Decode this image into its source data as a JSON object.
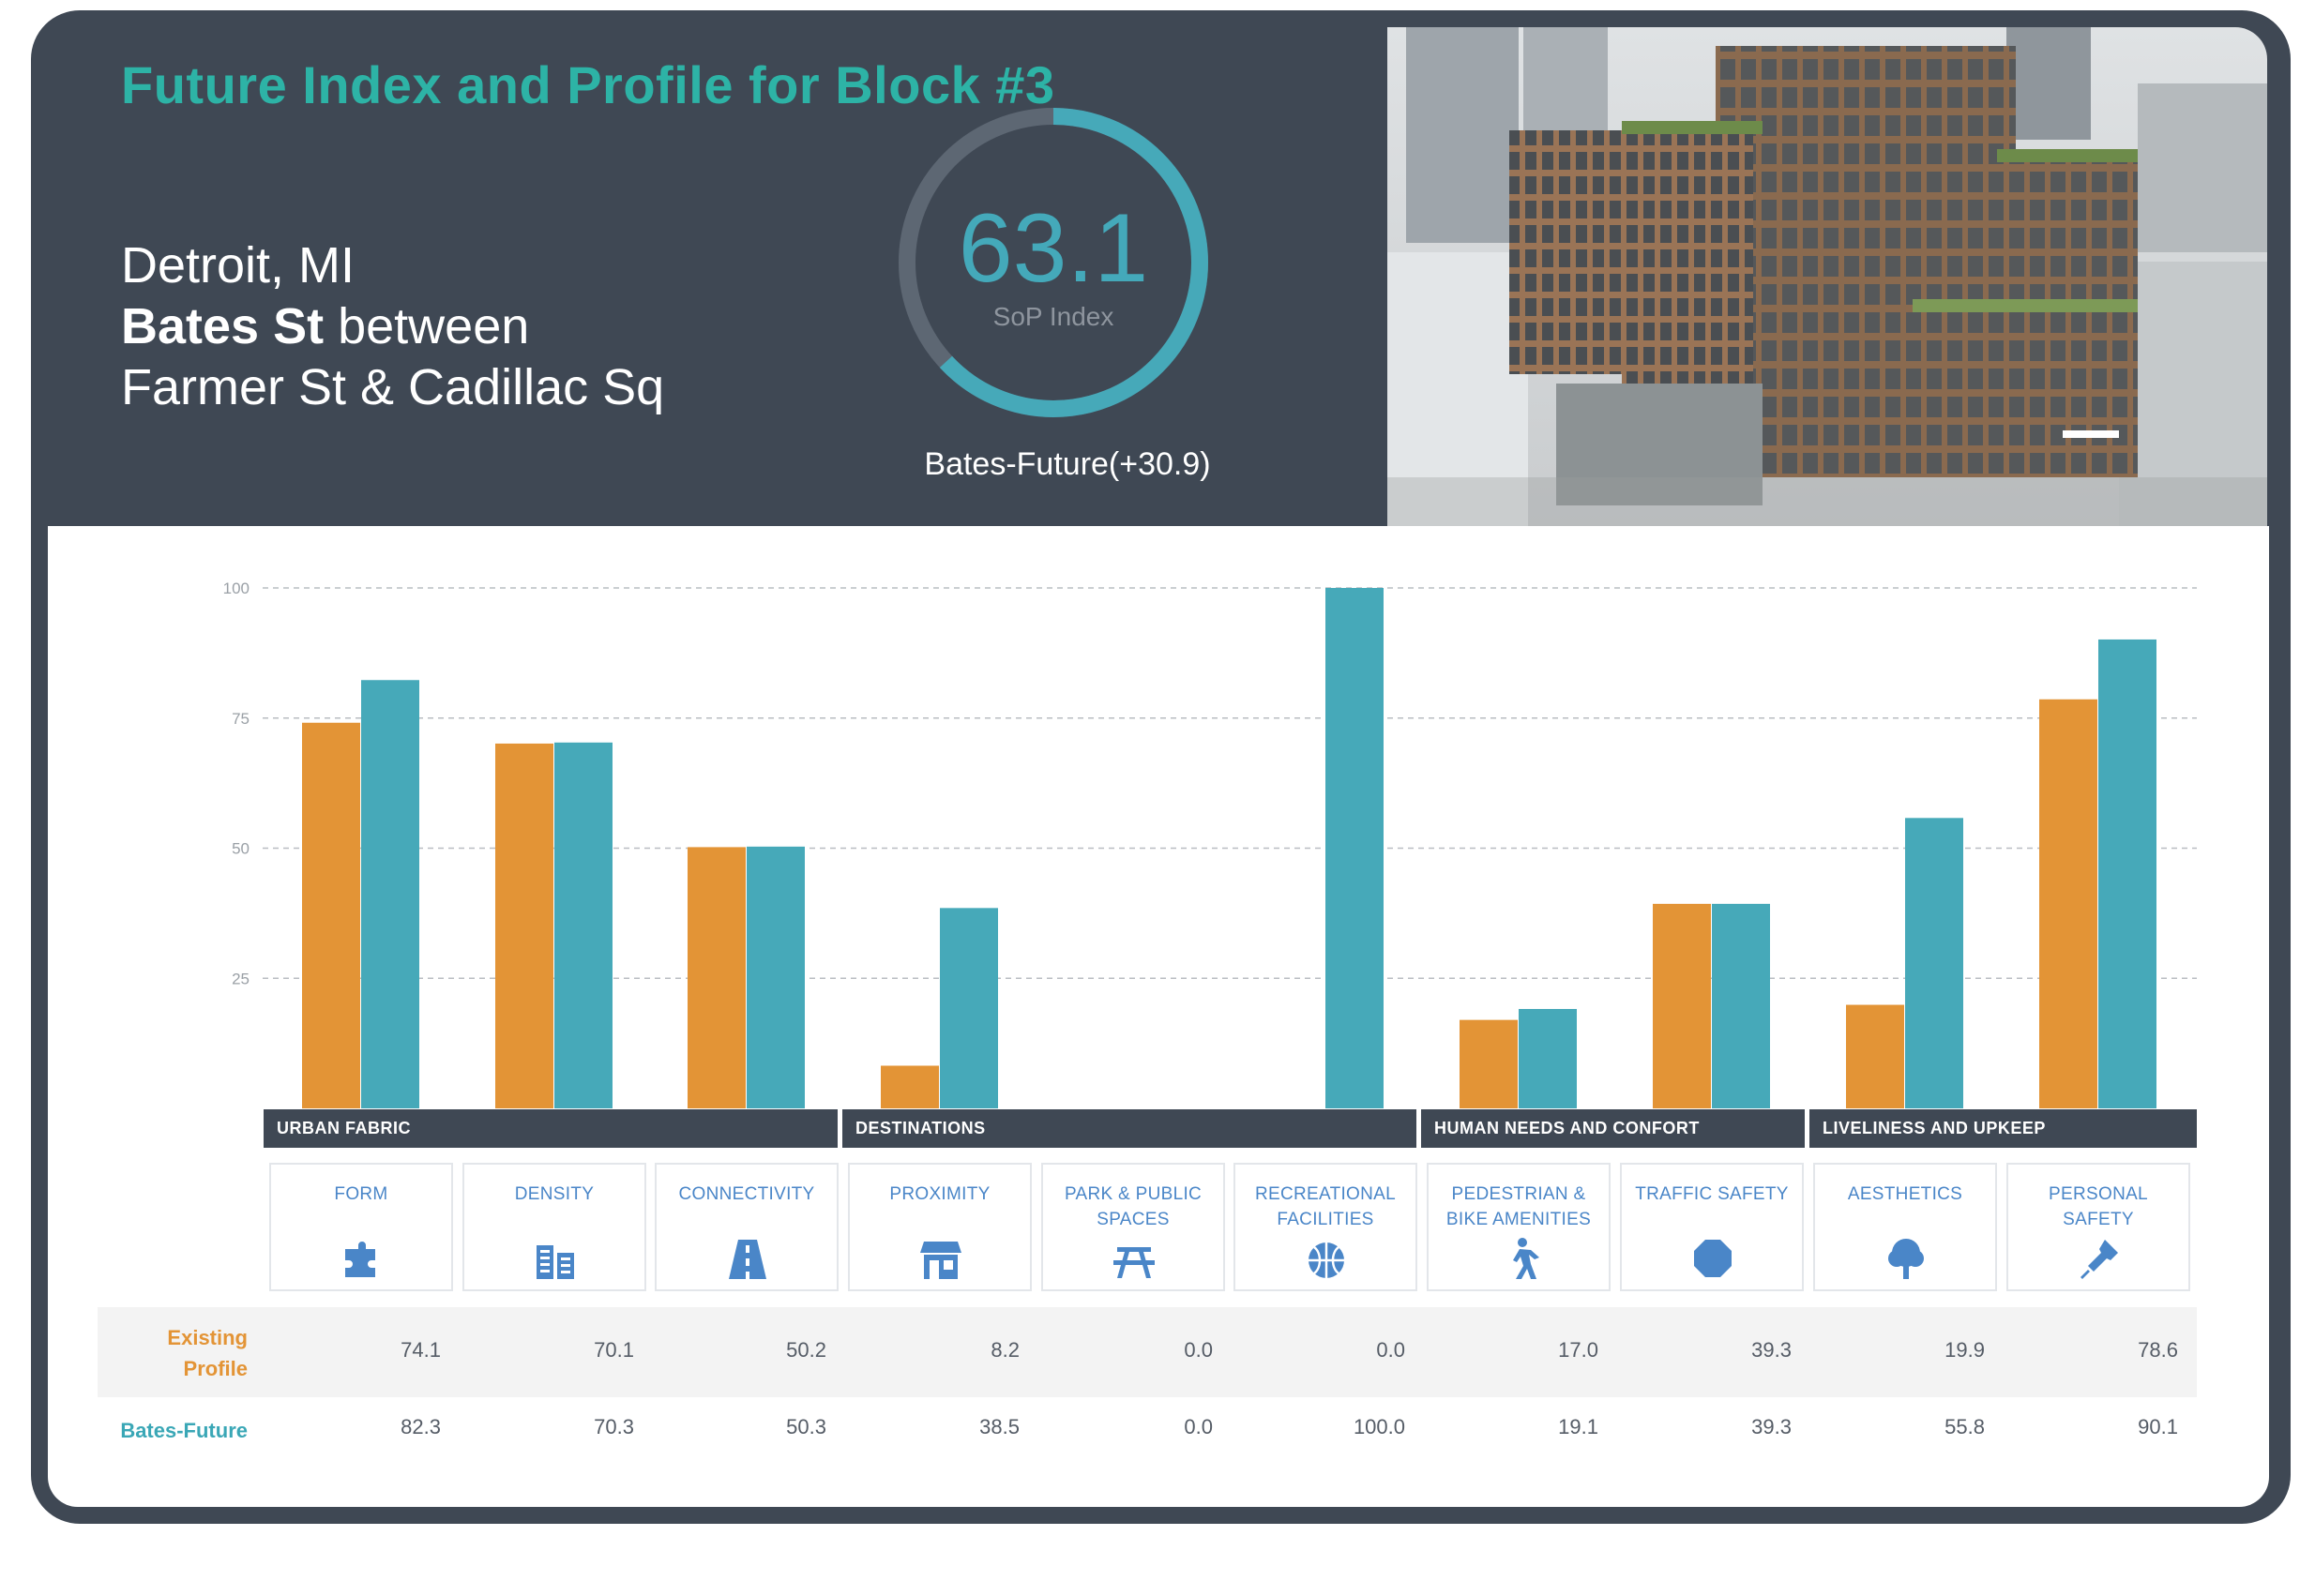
{
  "header": {
    "title": "Future Index and Profile for Block #3",
    "city": "Detroit, MI",
    "street": "Bates St",
    "between_text": "between",
    "cross_streets": "Farmer St & Cadillac Sq"
  },
  "gauge": {
    "value": "63.1",
    "label": "SoP Index",
    "fraction": 0.631,
    "caption": "Bates-Future(+30.9)"
  },
  "colors": {
    "existing": "#e39436",
    "future": "#46a9b9",
    "dark": "#3f4854",
    "accent_title": "#2db3a6",
    "category_text": "#4a86c8"
  },
  "groups": [
    {
      "label": "URBAN FABRIC"
    },
    {
      "label": "DESTINATIONS"
    },
    {
      "label": "HUMAN NEEDS AND CONFORT"
    },
    {
      "label": "LIVELINESS AND UPKEEP"
    }
  ],
  "categories": [
    {
      "label": "FORM",
      "icon": "puzzle-icon"
    },
    {
      "label": "DENSITY",
      "icon": "buildings-icon"
    },
    {
      "label": "CONNECTIVITY",
      "icon": "road-icon"
    },
    {
      "label": "PROXIMITY",
      "icon": "storefront-icon"
    },
    {
      "label": "PARK & PUBLIC SPACES",
      "icon": "picnic-table-icon"
    },
    {
      "label": "RECREATIONAL FACILITIES",
      "icon": "basketball-icon"
    },
    {
      "label": "PEDESTRIAN & BIKE AMENITIES",
      "icon": "walking-person-icon"
    },
    {
      "label": "TRAFFIC SAFETY",
      "icon": "stop-sign-icon"
    },
    {
      "label": "AESTHETICS",
      "icon": "tree-icon"
    },
    {
      "label": "PERSONAL SAFETY",
      "icon": "flashlight-icon"
    }
  ],
  "table": {
    "existing_label": "Existing Profile",
    "future_label": "Bates-Future",
    "existing_values": [
      "74.1",
      "70.1",
      "50.2",
      "8.2",
      "0.0",
      "0.0",
      "17.0",
      "39.3",
      "19.9",
      "78.6"
    ],
    "future_values": [
      "82.3",
      "70.3",
      "50.3",
      "38.5",
      "0.0",
      "100.0",
      "19.1",
      "39.3",
      "55.8",
      "90.1"
    ]
  },
  "chart_data": {
    "type": "bar",
    "categories": [
      "FORM",
      "DENSITY",
      "CONNECTIVITY",
      "PROXIMITY",
      "PARK & PUBLIC SPACES",
      "RECREATIONAL FACILITIES",
      "PEDESTRIAN & BIKE AMENITIES",
      "TRAFFIC SAFETY",
      "AESTHETICS",
      "PERSONAL SAFETY"
    ],
    "series": [
      {
        "name": "Existing Profile",
        "values": [
          74.1,
          70.1,
          50.2,
          8.2,
          0.0,
          0.0,
          17.0,
          39.3,
          19.9,
          78.6
        ]
      },
      {
        "name": "Bates-Future",
        "values": [
          82.3,
          70.3,
          50.3,
          38.5,
          0.0,
          100.0,
          19.1,
          39.3,
          55.8,
          90.1
        ]
      }
    ],
    "ylim": [
      0,
      100
    ],
    "yticks": [
      "100",
      "75",
      "50",
      "25"
    ],
    "grid": true
  }
}
